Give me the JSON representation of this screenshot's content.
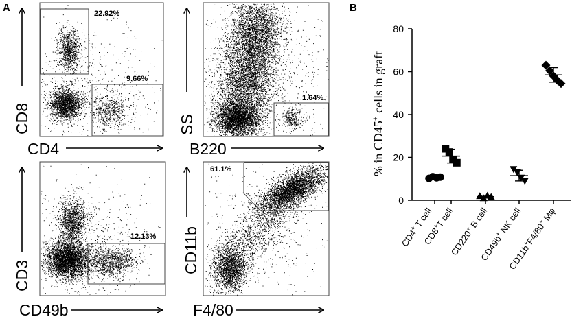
{
  "panel_a": {
    "letter": "A",
    "plots": [
      {
        "xlabel": "CD4",
        "ylabel": "CD8",
        "gates": [
          {
            "label": "22.92%"
          },
          {
            "label": "9.66%"
          }
        ]
      },
      {
        "xlabel": "B220",
        "ylabel": "SS",
        "gates": [
          {
            "label": "1.64%"
          }
        ]
      },
      {
        "xlabel": "CD49b",
        "ylabel": "CD3",
        "gates": [
          {
            "label": "12.13%"
          }
        ]
      },
      {
        "xlabel": "F4/80",
        "ylabel": "CD11b",
        "gates": [
          {
            "label": "61.1%"
          }
        ]
      }
    ]
  },
  "panel_b": {
    "letter": "B",
    "ylabel": {
      "pre": "% in CD45",
      "sup": "+",
      "post": " cells in graft"
    },
    "categories": [
      {
        "pre": "CD4",
        "sup": "+",
        "post": " T cell"
      },
      {
        "pre": "CD8",
        "sup": "+",
        "post": "T cell"
      },
      {
        "pre": "CD220",
        "sup": "+",
        "post": " B cell"
      },
      {
        "pre": "CD49b",
        "sup": "+",
        "post": " NK cell"
      },
      {
        "pre": "CD11b",
        "sup": "+",
        "post": "F4/80",
        "sup2": "+",
        "post2": " Mφ"
      }
    ],
    "yticks": [
      "0",
      "20",
      "40",
      "60",
      "80"
    ]
  },
  "chart_data": {
    "type": "scatter",
    "ylim": [
      0,
      80
    ],
    "series": [
      {
        "marker": "circle",
        "values": [
          10.2,
          11.0,
          10.5,
          10.8
        ],
        "mean": 10.6,
        "sd": 0.7
      },
      {
        "marker": "square",
        "values": [
          24.0,
          22.5,
          19.0,
          17.5
        ],
        "mean": 20.6,
        "sd": 3.2
      },
      {
        "marker": "triangle-up",
        "values": [
          2.0,
          1.0,
          2.2,
          1.6
        ],
        "mean": 1.7,
        "sd": 0.6
      },
      {
        "marker": "triangle-down",
        "values": [
          14.5,
          13.0,
          10.5,
          9.0
        ],
        "mean": 11.5,
        "sd": 2.5
      },
      {
        "marker": "diamond",
        "values": [
          63.0,
          60.5,
          58.0,
          56.0,
          54.5
        ],
        "mean": 58.5,
        "sd": 3.4
      }
    ]
  }
}
